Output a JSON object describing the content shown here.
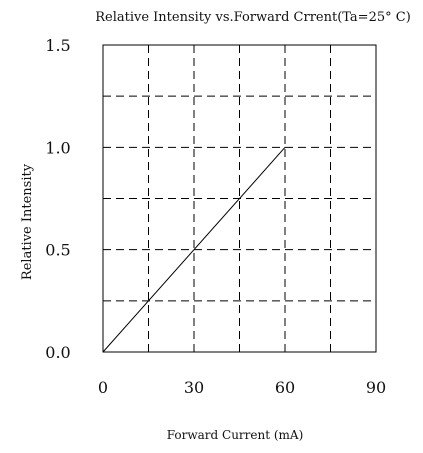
{
  "chart_data": {
    "type": "line",
    "title": "Relative Intensity vs.Forward Crrent(Ta=25° C)",
    "xlabel": "Forward Current (mA)",
    "ylabel": "Relative Intensity",
    "xlim": [
      0,
      90
    ],
    "ylim": [
      0,
      1.5
    ],
    "x_ticks": [
      0,
      30,
      60,
      90
    ],
    "y_ticks": [
      0.0,
      0.5,
      1.0,
      1.5
    ],
    "x_tick_labels": [
      "0",
      "30",
      "60",
      "90"
    ],
    "y_tick_labels": [
      "0.0",
      "0.5",
      "1.0",
      "1.5"
    ],
    "x_grid": [
      15,
      30,
      45,
      60,
      75
    ],
    "y_grid": [
      0.25,
      0.5,
      0.75,
      1.0,
      1.25
    ],
    "grid": true,
    "grid_style": "dashed",
    "series": [
      {
        "x": [
          0,
          60
        ],
        "y": [
          0.0,
          1.0
        ]
      }
    ],
    "line_color": "#000000",
    "grid_color": "#000000"
  }
}
